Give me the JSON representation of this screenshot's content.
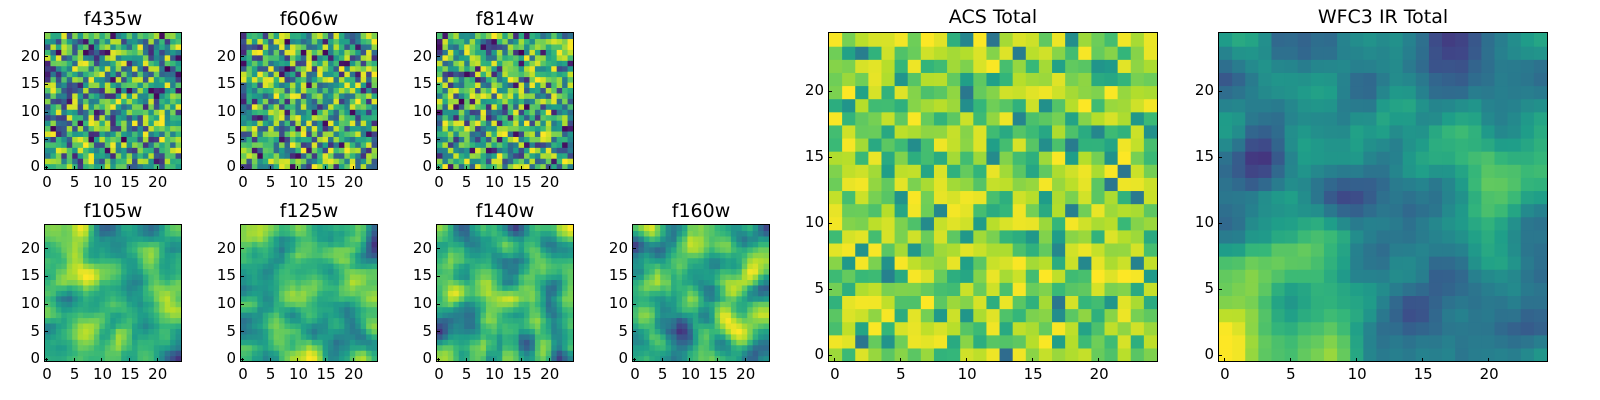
{
  "chart_data": [
    {
      "type": "heatmap",
      "title": "f435w",
      "xticks": [
        "0",
        "5",
        "10",
        "15",
        "20"
      ],
      "yticks": [
        "0",
        "5",
        "10",
        "15",
        "20"
      ],
      "xlim": [
        -0.5,
        24.5
      ],
      "ylim": [
        -0.5,
        24.5
      ],
      "grid": 25,
      "colormap": "viridis",
      "texture": "noise",
      "seed": 11
    },
    {
      "type": "heatmap",
      "title": "f606w",
      "xticks": [
        "0",
        "5",
        "10",
        "15",
        "20"
      ],
      "yticks": [
        "0",
        "5",
        "10",
        "15",
        "20"
      ],
      "xlim": [
        -0.5,
        24.5
      ],
      "ylim": [
        -0.5,
        24.5
      ],
      "grid": 25,
      "colormap": "viridis",
      "texture": "noise",
      "seed": 23
    },
    {
      "type": "heatmap",
      "title": "f814w",
      "xticks": [
        "0",
        "5",
        "10",
        "15",
        "20"
      ],
      "yticks": [
        "0",
        "5",
        "10",
        "15",
        "20"
      ],
      "xlim": [
        -0.5,
        24.5
      ],
      "ylim": [
        -0.5,
        24.5
      ],
      "grid": 25,
      "colormap": "viridis",
      "texture": "noise",
      "seed": 37
    },
    {
      "type": "heatmap",
      "title": "f105w",
      "xticks": [
        "0",
        "5",
        "10",
        "15",
        "20"
      ],
      "yticks": [
        "0",
        "5",
        "10",
        "15",
        "20"
      ],
      "xlim": [
        -0.5,
        24.5
      ],
      "ylim": [
        -0.5,
        24.5
      ],
      "grid": 25,
      "colormap": "viridis",
      "texture": "smooth",
      "seed": 41
    },
    {
      "type": "heatmap",
      "title": "f125w",
      "xticks": [
        "0",
        "5",
        "10",
        "15",
        "20"
      ],
      "yticks": [
        "0",
        "5",
        "10",
        "15",
        "20"
      ],
      "xlim": [
        -0.5,
        24.5
      ],
      "ylim": [
        -0.5,
        24.5
      ],
      "grid": 25,
      "colormap": "viridis",
      "texture": "smooth",
      "seed": 53
    },
    {
      "type": "heatmap",
      "title": "f140w",
      "xticks": [
        "0",
        "5",
        "10",
        "15",
        "20"
      ],
      "yticks": [
        "0",
        "5",
        "10",
        "15",
        "20"
      ],
      "xlim": [
        -0.5,
        24.5
      ],
      "ylim": [
        -0.5,
        24.5
      ],
      "grid": 25,
      "colormap": "viridis",
      "texture": "smooth",
      "seed": 67
    },
    {
      "type": "heatmap",
      "title": "f160w",
      "xticks": [
        "0",
        "5",
        "10",
        "15",
        "20"
      ],
      "yticks": [
        "0",
        "5",
        "10",
        "15",
        "20"
      ],
      "xlim": [
        -0.5,
        24.5
      ],
      "ylim": [
        -0.5,
        24.5
      ],
      "grid": 25,
      "colormap": "viridis",
      "texture": "smooth",
      "seed": 79
    },
    {
      "type": "heatmap",
      "title": "ACS Total",
      "xticks": [
        "0",
        "5",
        "10",
        "15",
        "20"
      ],
      "yticks": [
        "0",
        "5",
        "10",
        "15",
        "20"
      ],
      "xlim": [
        -0.5,
        24.5
      ],
      "ylim": [
        -0.5,
        24.5
      ],
      "grid": 25,
      "colormap": "viridis",
      "texture": "noise-bright",
      "seed": 97
    },
    {
      "type": "heatmap",
      "title": "WFC3 IR Total",
      "xticks": [
        "0",
        "5",
        "10",
        "15",
        "20"
      ],
      "yticks": [
        "0",
        "5",
        "10",
        "15",
        "20"
      ],
      "xlim": [
        -0.5,
        24.5
      ],
      "ylim": [
        -0.5,
        24.5
      ],
      "grid": 25,
      "colormap": "viridis",
      "texture": "smooth-gradient",
      "seed": 113
    }
  ]
}
